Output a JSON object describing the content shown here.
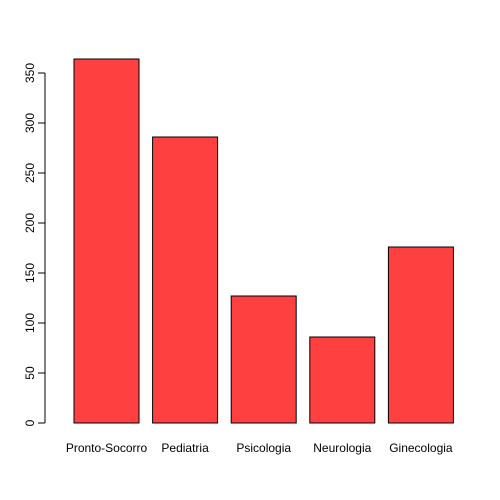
{
  "chart_data": {
    "type": "bar",
    "title": "",
    "xlabel": "",
    "ylabel": "",
    "categories": [
      "Pronto-Socorro",
      "Pediatria",
      "Psicologia",
      "Neurologia",
      "Ginecologia"
    ],
    "values": [
      364,
      286,
      127,
      86,
      176
    ],
    "ylim": [
      0,
      365
    ],
    "yticks": [
      0,
      50,
      100,
      150,
      200,
      250,
      300,
      350
    ],
    "bar_color": "#FF4040",
    "grid": false,
    "legend": "none"
  }
}
